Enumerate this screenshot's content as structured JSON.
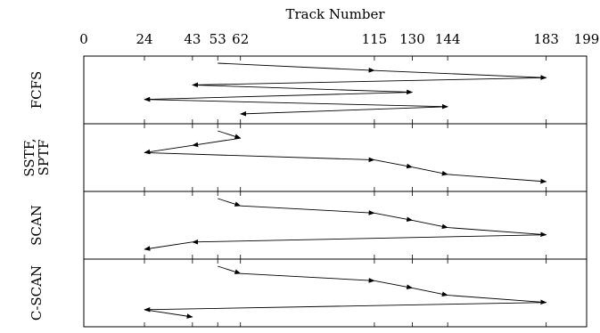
{
  "axis": {
    "title": "Track Number",
    "min": 0,
    "max": 199,
    "ticks": [
      0,
      24,
      43,
      53,
      62,
      115,
      130,
      144,
      183,
      199
    ]
  },
  "panels": [
    {
      "label_lines": [
        "FCFS"
      ],
      "sequence": [
        53,
        115,
        183,
        43,
        130,
        24,
        144,
        62
      ]
    },
    {
      "label_lines": [
        "SSTF,",
        "SPTF"
      ],
      "sequence": [
        53,
        62,
        43,
        24,
        115,
        130,
        144,
        183
      ]
    },
    {
      "label_lines": [
        "SCAN"
      ],
      "sequence": [
        53,
        62,
        115,
        130,
        144,
        183,
        43,
        24
      ]
    },
    {
      "label_lines": [
        "C-SCAN"
      ],
      "sequence": [
        53,
        62,
        115,
        130,
        144,
        183,
        24,
        43
      ]
    }
  ]
}
